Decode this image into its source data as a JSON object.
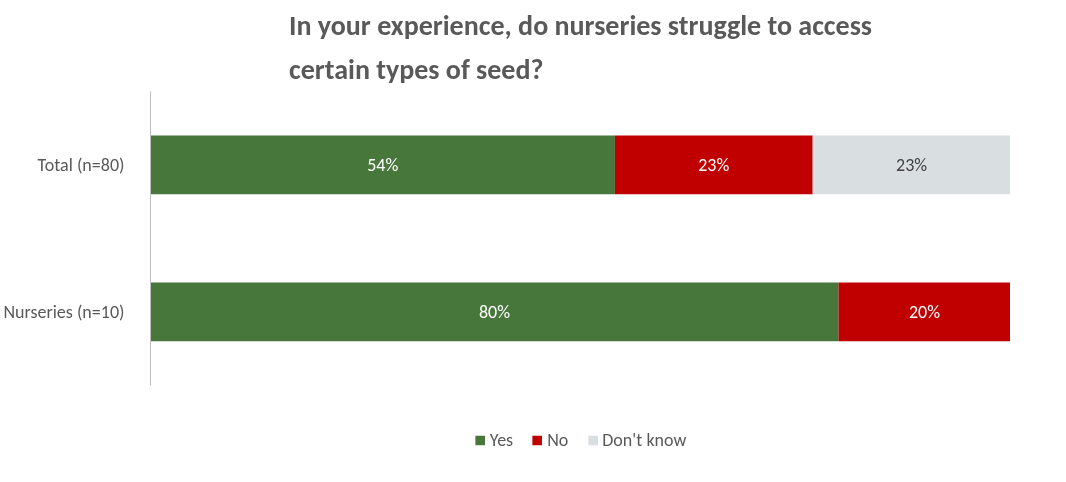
{
  "chart_data": {
    "type": "bar",
    "orientation": "horizontal",
    "stacked": true,
    "title": "In your experience, do nurseries struggle to access certain types of seed?",
    "categories": [
      "Total (n=80)",
      "Nurseries (n=10)"
    ],
    "series": [
      {
        "name": "Yes",
        "color": "#48773c",
        "values": [
          54,
          80
        ],
        "value_labels": [
          "54%",
          "80%"
        ]
      },
      {
        "name": "No",
        "color": "#c00000",
        "values": [
          23,
          20
        ],
        "value_labels": [
          "23%",
          "20%"
        ]
      },
      {
        "name": "Don't know",
        "color": "#d9dee1",
        "values": [
          23,
          null
        ],
        "value_labels": [
          "23%",
          null
        ]
      }
    ],
    "xlim": [
      0,
      100
    ],
    "tick_labels": "y",
    "grid": false,
    "legend": "bottom"
  }
}
